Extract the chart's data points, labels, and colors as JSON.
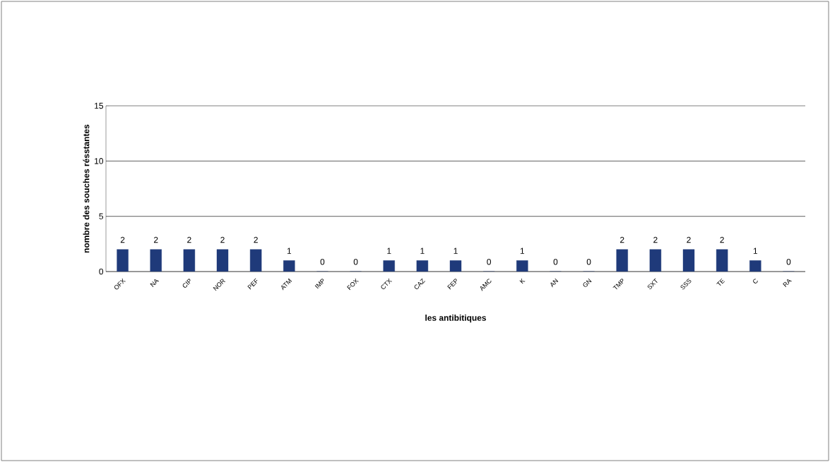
{
  "chart_data": {
    "type": "bar",
    "categories": [
      "OFX",
      "NA",
      "CIP",
      "NOR",
      "PEF",
      "ATM",
      "IMP",
      "FOX",
      "CTX",
      "CAZ",
      "FEP",
      "AMC",
      "K",
      "AN",
      "GN",
      "TMP",
      "SXT",
      "SSS",
      "TE",
      "C",
      "RA"
    ],
    "values": [
      2,
      2,
      2,
      2,
      2,
      1,
      0,
      0,
      1,
      1,
      1,
      0,
      1,
      0,
      0,
      2,
      2,
      2,
      2,
      1,
      0
    ],
    "color": "#1f3a7a",
    "ylim": [
      0,
      15
    ],
    "yticks": [
      0,
      5,
      10,
      15
    ],
    "grid": "y",
    "data_labels": true,
    "xlabel": "les antibitiques",
    "ylabel": "nombre des souches résstantes"
  }
}
